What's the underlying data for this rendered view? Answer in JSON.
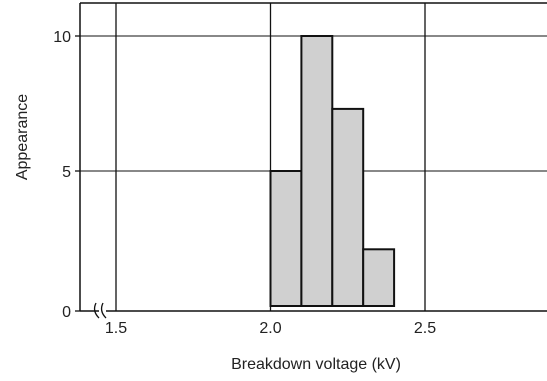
{
  "chart_data": {
    "type": "bar",
    "xlabel": "Breakdown voltage (kV)",
    "ylabel": "Appearance",
    "xlim": [
      1.35,
      2.85
    ],
    "ylim": [
      0,
      11
    ],
    "x_ticks": [
      {
        "value": 1.5,
        "label": "1.5"
      },
      {
        "value": 2.0,
        "label": "2.0"
      },
      {
        "value": 2.5,
        "label": "2.5"
      }
    ],
    "y_ticks": [
      {
        "value": 0,
        "label": "0"
      },
      {
        "value": 5,
        "label": "5"
      },
      {
        "value": 10,
        "label": "10"
      }
    ],
    "bins": [
      {
        "x0": 2.0,
        "x1": 2.1,
        "value": 5
      },
      {
        "x0": 2.1,
        "x1": 2.2,
        "value": 10
      },
      {
        "x0": 2.2,
        "x1": 2.3,
        "value": 7.3
      },
      {
        "x0": 2.3,
        "x1": 2.4,
        "value": 2.1
      }
    ],
    "bar_color": "#d0d0d0",
    "line_color": "#111111",
    "grid": true,
    "axis_break": true
  }
}
